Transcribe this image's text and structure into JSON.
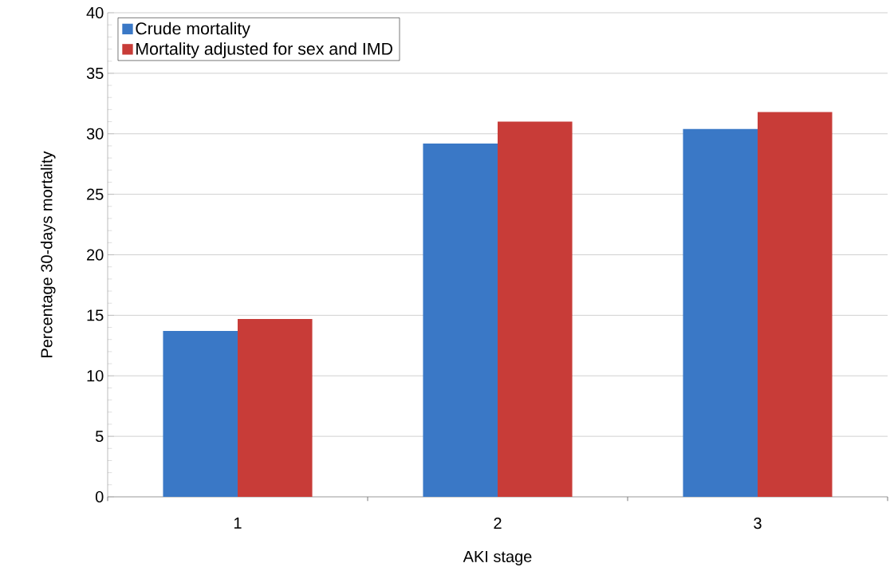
{
  "chart_data": {
    "type": "bar",
    "xlabel": "AKI stage",
    "ylabel": "Percentage 30-days mortality",
    "categories": [
      "1",
      "2",
      "3"
    ],
    "series": [
      {
        "name": "Crude mortality",
        "color": "#3a78c6",
        "values": [
          13.7,
          29.2,
          30.4
        ]
      },
      {
        "name": "Mortality adjusted for sex and IMD",
        "color": "#c83c38",
        "values": [
          14.7,
          31.0,
          31.8
        ]
      }
    ],
    "ylim": [
      0,
      40
    ],
    "yticks": [
      0,
      5,
      10,
      15,
      20,
      25,
      30,
      35,
      40
    ],
    "grid": "y",
    "legend": "top left"
  }
}
